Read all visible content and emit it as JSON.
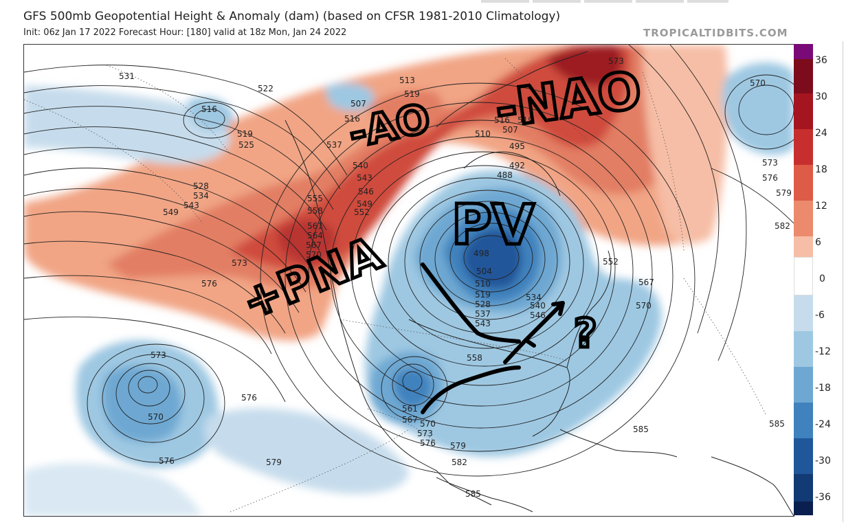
{
  "header": {
    "title": "GFS 500mb Geopotential Height & Anomaly (dam) (based on CFSR 1981-2010 Climatology)",
    "subtitle": "Init: 06z Jan 17 2022   Forecast Hour: [180]   valid at 18z Mon, Jan 24 2022",
    "brand": "TROPICALTIDBITS.COM"
  },
  "colorbar": {
    "labels": [
      "36",
      "30",
      "24",
      "18",
      "12",
      "6",
      "0",
      "-6",
      "-12",
      "-18",
      "-24",
      "-30",
      "-36"
    ],
    "colors": [
      "#7a0a78",
      "#7c0b1c",
      "#a5151f",
      "#c62f2d",
      "#dd5b47",
      "#eb8a6c",
      "#f6bea6",
      "#ffffff",
      "#c6dcec",
      "#9ec8e2",
      "#6ea8d2",
      "#3f82bd",
      "#20579a",
      "#123a74",
      "#0a1f4f"
    ]
  },
  "contours": {
    "labels": [
      "531",
      "522",
      "516",
      "519",
      "525",
      "528",
      "534",
      "543",
      "549",
      "507",
      "516",
      "513",
      "519",
      "510",
      "507",
      "516",
      "519",
      "573",
      "537",
      "540",
      "543",
      "546",
      "549",
      "552",
      "555",
      "558",
      "561",
      "564",
      "567",
      "570",
      "573",
      "576",
      "495",
      "492",
      "488",
      "498",
      "504",
      "510",
      "519",
      "528",
      "537",
      "543",
      "552",
      "567",
      "570",
      "570",
      "573",
      "576",
      "579",
      "582",
      "534",
      "540",
      "546",
      "558",
      "561",
      "567",
      "570",
      "573",
      "576",
      "579",
      "582",
      "585",
      "585",
      "585",
      "573",
      "570",
      "576",
      "576",
      "579"
    ]
  },
  "annotations": {
    "ao": "-AO",
    "nao": "-NAO",
    "pv": "PV",
    "pna": "+PNA",
    "question": "?"
  }
}
